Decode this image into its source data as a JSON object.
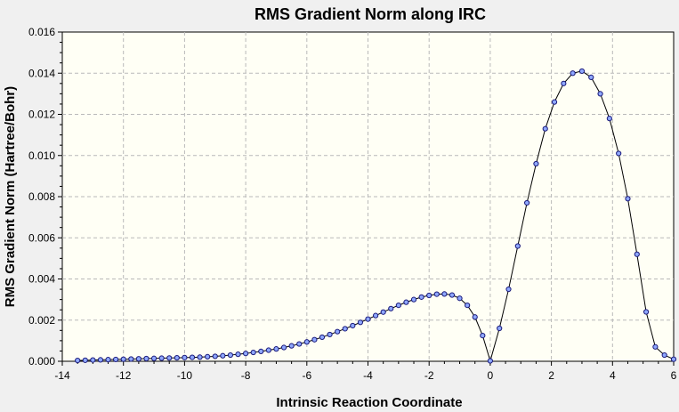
{
  "chart_data": {
    "type": "line",
    "title": "RMS Gradient Norm along IRC",
    "xlabel": "Intrinsic Reaction Coordinate",
    "ylabel": "RMS Gradient Norm (Hartree/Bohr)",
    "xlim": [
      -14,
      6
    ],
    "ylim": [
      0,
      0.016
    ],
    "x_ticks": [
      -14,
      -12,
      -10,
      -8,
      -6,
      -4,
      -2,
      0,
      2,
      4,
      6
    ],
    "x_tick_labels": [
      "-14",
      "-12",
      "-10",
      "-8",
      "-6",
      "-4",
      "-2",
      "0",
      "2",
      "4",
      "6"
    ],
    "y_ticks": [
      0,
      0.002,
      0.004,
      0.006,
      0.008,
      0.01,
      0.012,
      0.014,
      0.016
    ],
    "y_tick_labels": [
      "0.000",
      "0.002",
      "0.004",
      "0.006",
      "0.008",
      "0.010",
      "0.012",
      "0.014",
      "0.016"
    ],
    "grid": true,
    "series": [
      {
        "x": [
          -13.5,
          -13.25,
          -13.0,
          -12.75,
          -12.5,
          -12.25,
          -12.0,
          -11.75,
          -11.5,
          -11.25,
          -11.0,
          -10.75,
          -10.5,
          -10.25,
          -10.0,
          -9.75,
          -9.5,
          -9.25,
          -9.0,
          -8.75,
          -8.5,
          -8.25,
          -8.0,
          -7.75,
          -7.5,
          -7.25,
          -7.0,
          -6.75,
          -6.5,
          -6.25,
          -6.0,
          -5.75,
          -5.5,
          -5.25,
          -5.0,
          -4.75,
          -4.5,
          -4.25,
          -4.0,
          -3.75,
          -3.5,
          -3.25,
          -3.0,
          -2.75,
          -2.5,
          -2.25,
          -2.0,
          -1.75,
          -1.5,
          -1.25,
          -1.0,
          -0.75,
          -0.5,
          -0.25,
          0.0,
          0.3,
          0.6,
          0.9,
          1.2,
          1.5,
          1.8,
          2.1,
          2.4,
          2.7,
          3.0,
          3.3,
          3.6,
          3.9,
          4.2,
          4.5,
          4.8,
          5.1,
          5.4,
          5.7,
          6.0
        ],
        "y": [
          4e-05,
          5e-05,
          6e-05,
          7e-05,
          8e-05,
          9e-05,
          0.0001,
          0.00011,
          0.00012,
          0.00013,
          0.00014,
          0.00015,
          0.00016,
          0.00017,
          0.00018,
          0.00019,
          0.0002,
          0.00022,
          0.00024,
          0.00027,
          0.0003,
          0.00034,
          0.00038,
          0.00043,
          0.00048,
          0.00054,
          0.0006,
          0.00067,
          0.00075,
          0.00084,
          0.00094,
          0.00105,
          0.00117,
          0.0013,
          0.00144,
          0.00158,
          0.00173,
          0.00189,
          0.00205,
          0.00222,
          0.00239,
          0.00256,
          0.00272,
          0.00287,
          0.003,
          0.00312,
          0.0032,
          0.00326,
          0.00327,
          0.00322,
          0.00306,
          0.00272,
          0.00215,
          0.00125,
          2e-05,
          0.0016,
          0.0035,
          0.0056,
          0.0077,
          0.0096,
          0.0113,
          0.0126,
          0.0135,
          0.014,
          0.0141,
          0.0138,
          0.013,
          0.0118,
          0.0101,
          0.0079,
          0.0052,
          0.0024,
          0.0007,
          0.0003,
          0.0001
        ]
      }
    ]
  }
}
